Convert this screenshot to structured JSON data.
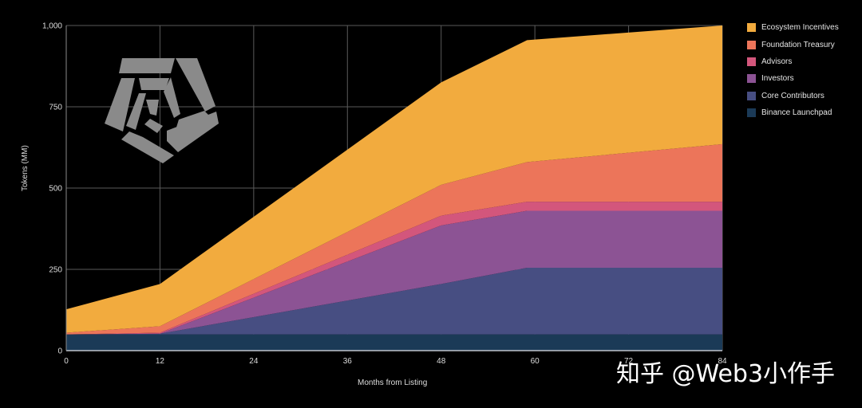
{
  "chart_data": {
    "type": "area",
    "stacked": true,
    "title": "",
    "xlabel": "Months from Listing",
    "ylabel": "Tokens (MM)",
    "x": [
      0,
      12,
      48,
      59,
      84
    ],
    "x_ticks": [
      "0",
      "12",
      "24",
      "36",
      "48",
      "60",
      "72",
      "84"
    ],
    "y_ticks": [
      "0",
      "250",
      "500",
      "750",
      "1,000"
    ],
    "xlim": [
      0,
      84
    ],
    "ylim": [
      0,
      1000
    ],
    "grid": true,
    "legend_position": "right",
    "series": [
      {
        "name": "Binance Launchpad",
        "color": "#1b3a57",
        "values": [
          50,
          50,
          50,
          50,
          50
        ]
      },
      {
        "name": "Core Contributors",
        "color": "#474e82",
        "values": [
          0,
          2,
          155,
          205,
          205
        ]
      },
      {
        "name": "Investors",
        "color": "#8c5394",
        "values": [
          0,
          0,
          180,
          175,
          175
        ]
      },
      {
        "name": "Advisors",
        "color": "#d3567c",
        "values": [
          0,
          3,
          30,
          28,
          28
        ]
      },
      {
        "name": "Foundation Treasury",
        "color": "#ec755a",
        "values": [
          5,
          20,
          95,
          122,
          177
        ]
      },
      {
        "name": "Ecosystem Incentives",
        "color": "#f2ab3e",
        "values": [
          72,
          130,
          315,
          375,
          365
        ]
      }
    ]
  },
  "legend": {
    "items": [
      {
        "label": "Ecosystem Incentives",
        "color": "#f2ab3e"
      },
      {
        "label": "Foundation Treasury",
        "color": "#ec755a"
      },
      {
        "label": "Advisors",
        "color": "#d3567c"
      },
      {
        "label": "Investors",
        "color": "#8c5394"
      },
      {
        "label": "Core Contributors",
        "color": "#474e82"
      },
      {
        "label": "Binance Launchpad",
        "color": "#1b3a57"
      }
    ]
  },
  "logo": {
    "icon": "pentagon-logo-icon",
    "color": "#8a8a8a"
  },
  "watermark": {
    "text": "知乎 @Web3小作手"
  }
}
